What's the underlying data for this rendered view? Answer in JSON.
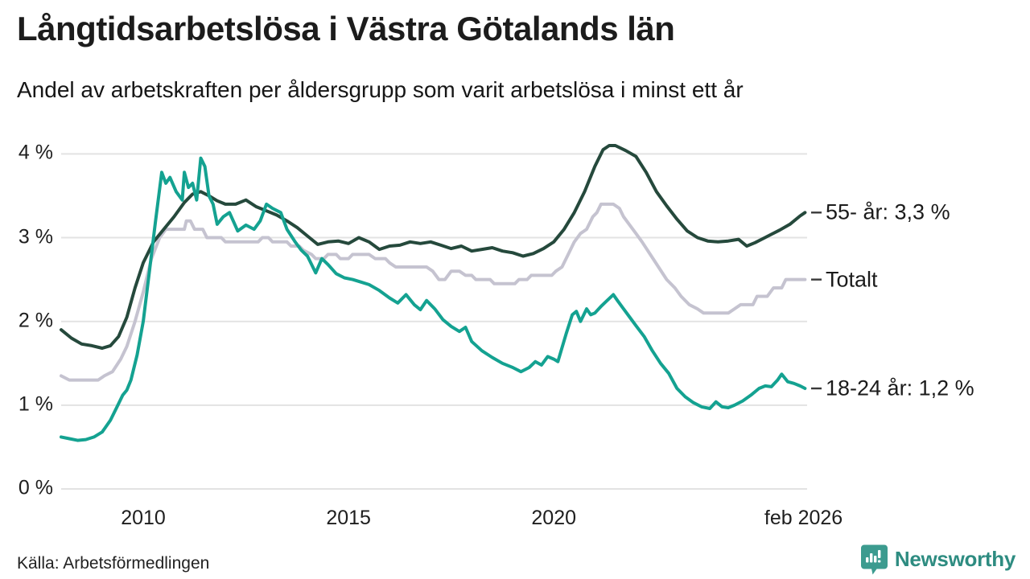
{
  "header": {
    "title": "Långtidsarbetslösa i Västra Götalands län",
    "subtitle": "Andel av arbetskraften per åldersgrupp som varit arbetslösa i minst ett år"
  },
  "footer": {
    "source": "Källa: Arbetsförmedlingen",
    "brand": "Newsworthy",
    "brand_color": "#2e8c81",
    "logo_badge_color": "#3c9b8f"
  },
  "chart_data": {
    "type": "line",
    "xlabel": "",
    "ylabel": "",
    "grid": true,
    "grid_color": "#e3e3e3",
    "axis_text_color": "#1e1e1e",
    "tick_dash_color": "#3a3a3a",
    "x_range": [
      2008.0,
      2026.17
    ],
    "ylim": [
      0,
      4.3
    ],
    "y_ticks": [
      {
        "value": 0,
        "label": "0 %"
      },
      {
        "value": 1,
        "label": "1 %"
      },
      {
        "value": 2,
        "label": "2 %"
      },
      {
        "value": 3,
        "label": "3 %"
      },
      {
        "value": 4,
        "label": "4 %"
      }
    ],
    "x_ticks": [
      {
        "value": 2010.0,
        "label": "2010"
      },
      {
        "value": 2015.0,
        "label": "2015"
      },
      {
        "value": 2020.0,
        "label": "2020"
      },
      {
        "value": 2026.083,
        "label": "feb 2026"
      }
    ],
    "series": [
      {
        "name": "55- år",
        "end_label": "55- år: 3,3 %",
        "end_value": "3,3 %",
        "color": "#25493c",
        "points": [
          [
            2008.0,
            1.9
          ],
          [
            2008.25,
            1.8
          ],
          [
            2008.5,
            1.73
          ],
          [
            2008.75,
            1.71
          ],
          [
            2009.0,
            1.68
          ],
          [
            2009.2,
            1.71
          ],
          [
            2009.4,
            1.82
          ],
          [
            2009.6,
            2.05
          ],
          [
            2009.8,
            2.4
          ],
          [
            2010.0,
            2.7
          ],
          [
            2010.25,
            2.95
          ],
          [
            2010.5,
            3.1
          ],
          [
            2010.75,
            3.25
          ],
          [
            2011.0,
            3.42
          ],
          [
            2011.2,
            3.52
          ],
          [
            2011.4,
            3.55
          ],
          [
            2011.6,
            3.5
          ],
          [
            2011.8,
            3.44
          ],
          [
            2012.0,
            3.4
          ],
          [
            2012.25,
            3.4
          ],
          [
            2012.5,
            3.45
          ],
          [
            2012.75,
            3.37
          ],
          [
            2013.0,
            3.32
          ],
          [
            2013.25,
            3.27
          ],
          [
            2013.5,
            3.2
          ],
          [
            2013.75,
            3.12
          ],
          [
            2014.0,
            3.02
          ],
          [
            2014.25,
            2.92
          ],
          [
            2014.5,
            2.95
          ],
          [
            2014.75,
            2.96
          ],
          [
            2015.0,
            2.93
          ],
          [
            2015.25,
            3.0
          ],
          [
            2015.5,
            2.95
          ],
          [
            2015.75,
            2.86
          ],
          [
            2016.0,
            2.9
          ],
          [
            2016.25,
            2.91
          ],
          [
            2016.5,
            2.95
          ],
          [
            2016.75,
            2.93
          ],
          [
            2017.0,
            2.95
          ],
          [
            2017.25,
            2.91
          ],
          [
            2017.5,
            2.87
          ],
          [
            2017.75,
            2.9
          ],
          [
            2018.0,
            2.84
          ],
          [
            2018.25,
            2.86
          ],
          [
            2018.5,
            2.88
          ],
          [
            2018.75,
            2.84
          ],
          [
            2019.0,
            2.82
          ],
          [
            2019.25,
            2.78
          ],
          [
            2019.5,
            2.81
          ],
          [
            2019.75,
            2.87
          ],
          [
            2020.0,
            2.95
          ],
          [
            2020.25,
            3.1
          ],
          [
            2020.5,
            3.3
          ],
          [
            2020.75,
            3.55
          ],
          [
            2021.0,
            3.85
          ],
          [
            2021.2,
            4.05
          ],
          [
            2021.35,
            4.1
          ],
          [
            2021.5,
            4.1
          ],
          [
            2021.75,
            4.04
          ],
          [
            2022.0,
            3.97
          ],
          [
            2022.25,
            3.78
          ],
          [
            2022.5,
            3.55
          ],
          [
            2022.75,
            3.38
          ],
          [
            2023.0,
            3.22
          ],
          [
            2023.25,
            3.08
          ],
          [
            2023.5,
            3.0
          ],
          [
            2023.75,
            2.96
          ],
          [
            2024.0,
            2.95
          ],
          [
            2024.25,
            2.96
          ],
          [
            2024.5,
            2.98
          ],
          [
            2024.7,
            2.9
          ],
          [
            2024.9,
            2.94
          ],
          [
            2025.1,
            2.99
          ],
          [
            2025.3,
            3.04
          ],
          [
            2025.5,
            3.09
          ],
          [
            2025.75,
            3.16
          ],
          [
            2026.0,
            3.26
          ],
          [
            2026.12,
            3.3
          ]
        ]
      },
      {
        "name": "Totalt",
        "end_label": "Totalt",
        "end_value": "",
        "color": "#c5c3d0",
        "points": [
          [
            2008.0,
            1.35
          ],
          [
            2008.2,
            1.3
          ],
          [
            2008.9,
            1.3
          ],
          [
            2009.05,
            1.35
          ],
          [
            2009.25,
            1.4
          ],
          [
            2009.45,
            1.55
          ],
          [
            2009.6,
            1.7
          ],
          [
            2009.8,
            2.0
          ],
          [
            2010.0,
            2.35
          ],
          [
            2010.2,
            2.75
          ],
          [
            2010.4,
            3.0
          ],
          [
            2010.55,
            3.1
          ],
          [
            2011.0,
            3.1
          ],
          [
            2011.05,
            3.2
          ],
          [
            2011.15,
            3.2
          ],
          [
            2011.25,
            3.1
          ],
          [
            2011.45,
            3.1
          ],
          [
            2011.55,
            3.0
          ],
          [
            2011.9,
            3.0
          ],
          [
            2012.0,
            2.95
          ],
          [
            2012.8,
            2.95
          ],
          [
            2012.9,
            3.0
          ],
          [
            2013.05,
            3.0
          ],
          [
            2013.15,
            2.95
          ],
          [
            2013.5,
            2.95
          ],
          [
            2013.6,
            2.9
          ],
          [
            2013.8,
            2.9
          ],
          [
            2013.9,
            2.85
          ],
          [
            2014.1,
            2.8
          ],
          [
            2014.2,
            2.75
          ],
          [
            2014.4,
            2.75
          ],
          [
            2014.5,
            2.8
          ],
          [
            2014.7,
            2.8
          ],
          [
            2014.8,
            2.75
          ],
          [
            2015.0,
            2.75
          ],
          [
            2015.1,
            2.8
          ],
          [
            2015.5,
            2.8
          ],
          [
            2015.65,
            2.75
          ],
          [
            2015.9,
            2.75
          ],
          [
            2016.0,
            2.7
          ],
          [
            2016.15,
            2.65
          ],
          [
            2016.9,
            2.65
          ],
          [
            2017.05,
            2.6
          ],
          [
            2017.2,
            2.5
          ],
          [
            2017.35,
            2.5
          ],
          [
            2017.5,
            2.6
          ],
          [
            2017.7,
            2.6
          ],
          [
            2017.85,
            2.55
          ],
          [
            2018.0,
            2.55
          ],
          [
            2018.1,
            2.5
          ],
          [
            2018.45,
            2.5
          ],
          [
            2018.55,
            2.45
          ],
          [
            2019.05,
            2.45
          ],
          [
            2019.15,
            2.5
          ],
          [
            2019.35,
            2.5
          ],
          [
            2019.45,
            2.55
          ],
          [
            2019.95,
            2.55
          ],
          [
            2020.05,
            2.6
          ],
          [
            2020.2,
            2.65
          ],
          [
            2020.35,
            2.8
          ],
          [
            2020.5,
            2.95
          ],
          [
            2020.65,
            3.05
          ],
          [
            2020.8,
            3.1
          ],
          [
            2020.95,
            3.25
          ],
          [
            2021.05,
            3.3
          ],
          [
            2021.15,
            3.4
          ],
          [
            2021.45,
            3.4
          ],
          [
            2021.6,
            3.35
          ],
          [
            2021.7,
            3.25
          ],
          [
            2021.85,
            3.15
          ],
          [
            2022.0,
            3.05
          ],
          [
            2022.15,
            2.95
          ],
          [
            2022.35,
            2.8
          ],
          [
            2022.55,
            2.65
          ],
          [
            2022.75,
            2.5
          ],
          [
            2022.95,
            2.4
          ],
          [
            2023.1,
            2.3
          ],
          [
            2023.3,
            2.2
          ],
          [
            2023.5,
            2.15
          ],
          [
            2023.65,
            2.1
          ],
          [
            2024.25,
            2.1
          ],
          [
            2024.4,
            2.15
          ],
          [
            2024.55,
            2.2
          ],
          [
            2024.85,
            2.2
          ],
          [
            2024.95,
            2.3
          ],
          [
            2025.2,
            2.3
          ],
          [
            2025.35,
            2.4
          ],
          [
            2025.55,
            2.4
          ],
          [
            2025.65,
            2.5
          ],
          [
            2026.12,
            2.5
          ]
        ]
      },
      {
        "name": "18-24 år",
        "end_label": "18-24 år: 1,2 %",
        "end_value": "1,2 %",
        "color": "#14a291",
        "points": [
          [
            2008.0,
            0.62
          ],
          [
            2008.2,
            0.6
          ],
          [
            2008.4,
            0.58
          ],
          [
            2008.6,
            0.59
          ],
          [
            2008.8,
            0.62
          ],
          [
            2009.0,
            0.68
          ],
          [
            2009.2,
            0.82
          ],
          [
            2009.35,
            0.97
          ],
          [
            2009.5,
            1.12
          ],
          [
            2009.6,
            1.18
          ],
          [
            2009.7,
            1.3
          ],
          [
            2009.85,
            1.6
          ],
          [
            2010.0,
            2.0
          ],
          [
            2010.15,
            2.6
          ],
          [
            2010.3,
            3.2
          ],
          [
            2010.45,
            3.78
          ],
          [
            2010.55,
            3.65
          ],
          [
            2010.65,
            3.72
          ],
          [
            2010.8,
            3.55
          ],
          [
            2010.95,
            3.45
          ],
          [
            2011.0,
            3.78
          ],
          [
            2011.1,
            3.6
          ],
          [
            2011.2,
            3.65
          ],
          [
            2011.3,
            3.45
          ],
          [
            2011.4,
            3.95
          ],
          [
            2011.5,
            3.85
          ],
          [
            2011.6,
            3.5
          ],
          [
            2011.7,
            3.4
          ],
          [
            2011.8,
            3.16
          ],
          [
            2011.95,
            3.25
          ],
          [
            2012.1,
            3.3
          ],
          [
            2012.3,
            3.08
          ],
          [
            2012.5,
            3.15
          ],
          [
            2012.7,
            3.1
          ],
          [
            2012.85,
            3.2
          ],
          [
            2013.0,
            3.4
          ],
          [
            2013.15,
            3.35
          ],
          [
            2013.35,
            3.3
          ],
          [
            2013.5,
            3.1
          ],
          [
            2013.7,
            2.95
          ],
          [
            2013.85,
            2.85
          ],
          [
            2014.0,
            2.78
          ],
          [
            2014.2,
            2.58
          ],
          [
            2014.35,
            2.75
          ],
          [
            2014.5,
            2.68
          ],
          [
            2014.7,
            2.57
          ],
          [
            2014.9,
            2.52
          ],
          [
            2015.1,
            2.5
          ],
          [
            2015.3,
            2.47
          ],
          [
            2015.5,
            2.44
          ],
          [
            2015.75,
            2.37
          ],
          [
            2016.0,
            2.28
          ],
          [
            2016.2,
            2.22
          ],
          [
            2016.4,
            2.32
          ],
          [
            2016.6,
            2.2
          ],
          [
            2016.75,
            2.14
          ],
          [
            2016.9,
            2.25
          ],
          [
            2017.1,
            2.15
          ],
          [
            2017.3,
            2.02
          ],
          [
            2017.5,
            1.94
          ],
          [
            2017.7,
            1.88
          ],
          [
            2017.85,
            1.93
          ],
          [
            2018.0,
            1.76
          ],
          [
            2018.25,
            1.65
          ],
          [
            2018.5,
            1.57
          ],
          [
            2018.75,
            1.5
          ],
          [
            2019.0,
            1.45
          ],
          [
            2019.2,
            1.4
          ],
          [
            2019.4,
            1.45
          ],
          [
            2019.55,
            1.52
          ],
          [
            2019.7,
            1.48
          ],
          [
            2019.85,
            1.58
          ],
          [
            2020.0,
            1.55
          ],
          [
            2020.1,
            1.52
          ],
          [
            2020.3,
            1.85
          ],
          [
            2020.45,
            2.08
          ],
          [
            2020.55,
            2.12
          ],
          [
            2020.65,
            2.0
          ],
          [
            2020.8,
            2.15
          ],
          [
            2020.9,
            2.08
          ],
          [
            2021.0,
            2.1
          ],
          [
            2021.15,
            2.18
          ],
          [
            2021.3,
            2.25
          ],
          [
            2021.45,
            2.32
          ],
          [
            2021.55,
            2.25
          ],
          [
            2021.7,
            2.15
          ],
          [
            2021.85,
            2.05
          ],
          [
            2022.0,
            1.95
          ],
          [
            2022.2,
            1.82
          ],
          [
            2022.4,
            1.65
          ],
          [
            2022.6,
            1.5
          ],
          [
            2022.8,
            1.38
          ],
          [
            2023.0,
            1.2
          ],
          [
            2023.2,
            1.1
          ],
          [
            2023.4,
            1.03
          ],
          [
            2023.6,
            0.98
          ],
          [
            2023.8,
            0.96
          ],
          [
            2023.95,
            1.04
          ],
          [
            2024.1,
            0.98
          ],
          [
            2024.25,
            0.97
          ],
          [
            2024.4,
            1.0
          ],
          [
            2024.6,
            1.05
          ],
          [
            2024.8,
            1.12
          ],
          [
            2025.0,
            1.2
          ],
          [
            2025.15,
            1.23
          ],
          [
            2025.3,
            1.22
          ],
          [
            2025.45,
            1.3
          ],
          [
            2025.55,
            1.37
          ],
          [
            2025.7,
            1.28
          ],
          [
            2025.85,
            1.26
          ],
          [
            2026.0,
            1.23
          ],
          [
            2026.12,
            1.2
          ]
        ]
      }
    ]
  }
}
